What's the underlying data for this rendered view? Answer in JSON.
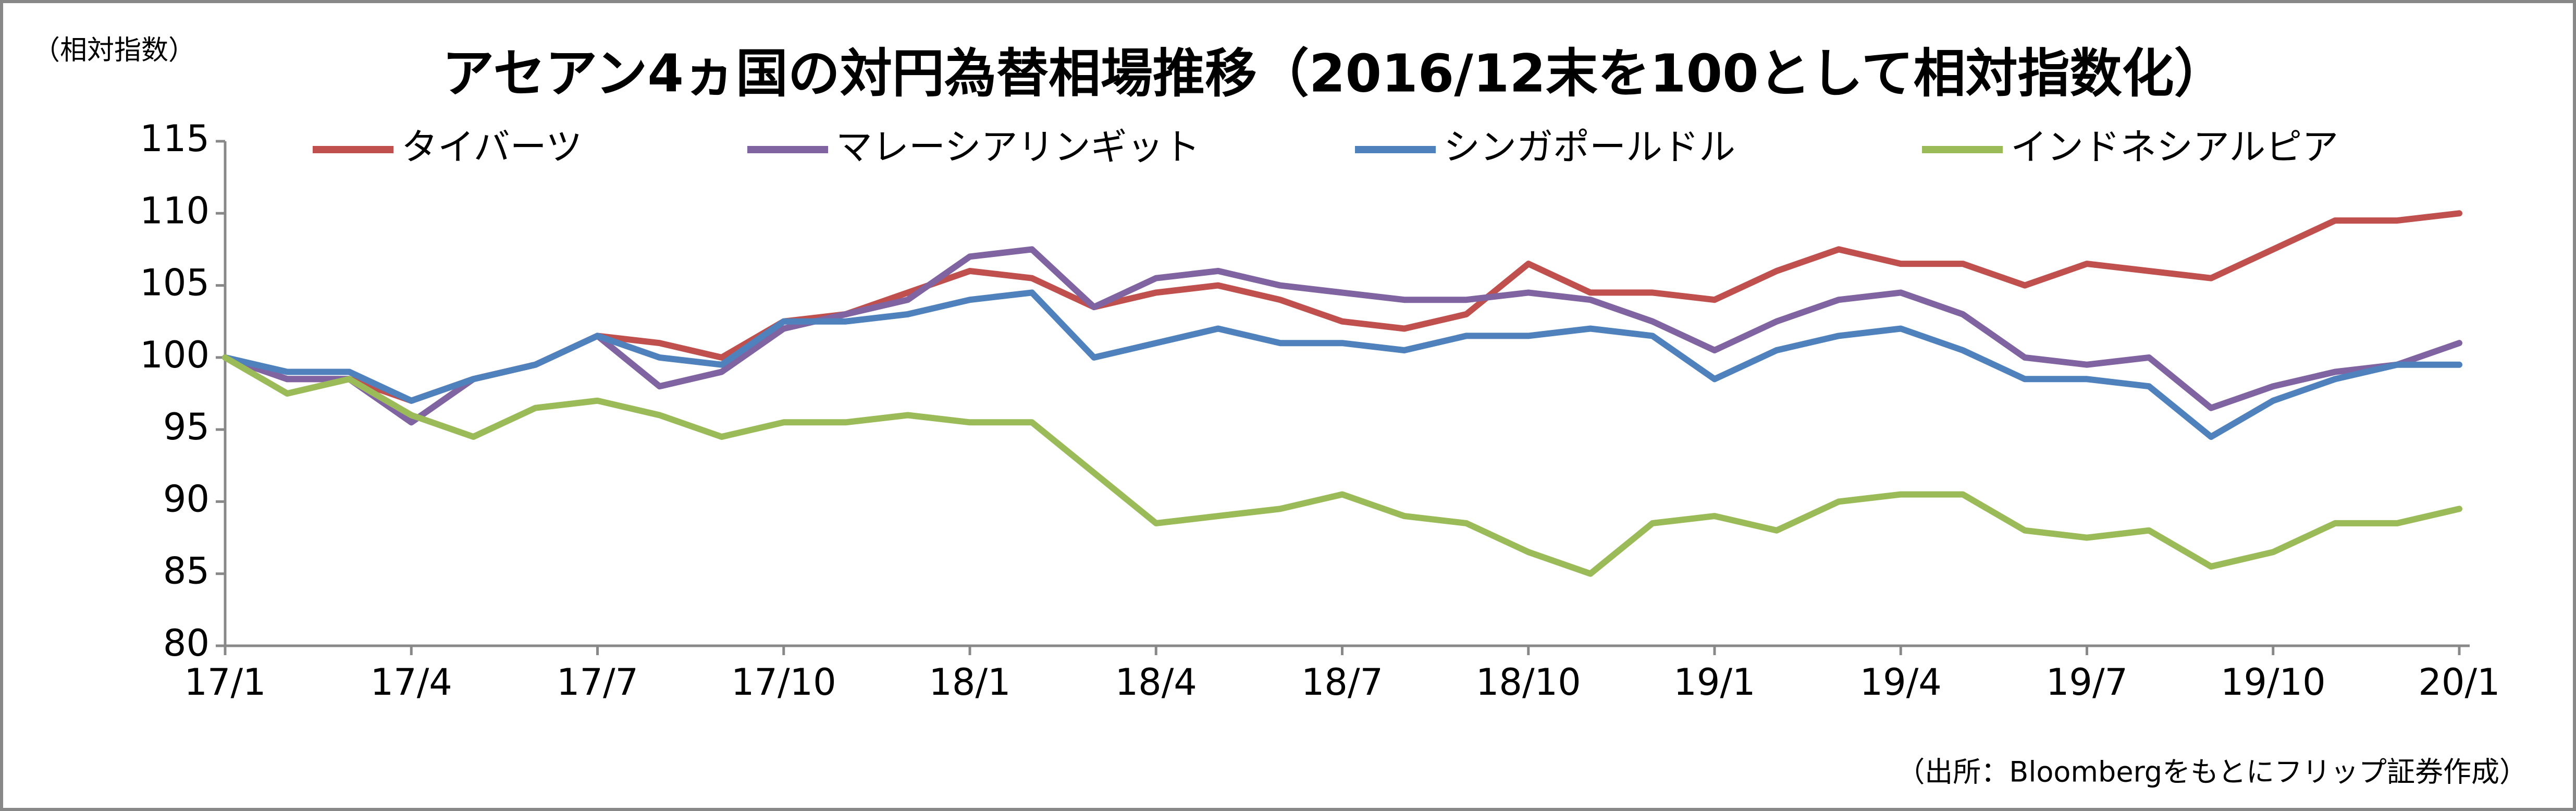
{
  "chart_data": {
    "type": "line",
    "title": "アセアン4ヵ国の対円為替相場推移（2016/12末を100として相対指数化）",
    "y_label": "（相対指数）",
    "source": "（出所：Bloombergをもとにフリップ証券作成）",
    "categories": [
      "17/1",
      null,
      null,
      "17/4",
      null,
      null,
      "17/7",
      null,
      null,
      "17/10",
      null,
      null,
      "18/1",
      null,
      null,
      "18/4",
      null,
      null,
      "18/7",
      null,
      null,
      "18/10",
      null,
      null,
      "19/1",
      null,
      null,
      "19/4",
      null,
      null,
      "19/7",
      null,
      null,
      "19/10",
      null,
      null,
      "20/1"
    ],
    "series": [
      {
        "name": "タイバーツ",
        "color": "#c0504d",
        "values": [
          100,
          98.5,
          98.5,
          97,
          98.5,
          99.5,
          101.5,
          101,
          100,
          102.5,
          103,
          104.5,
          106,
          105.5,
          103.5,
          104.5,
          105,
          104,
          102.5,
          102,
          103,
          106.5,
          104.5,
          104.5,
          104,
          106,
          107.5,
          106.5,
          106.5,
          105,
          106.5,
          106,
          105.5,
          107.5,
          109.5,
          109.5,
          110
        ]
      },
      {
        "name": "マレーシアリンギット",
        "color": "#8064a2",
        "values": [
          100,
          98.5,
          98.5,
          95.5,
          98.5,
          99.5,
          101.5,
          98,
          99,
          102,
          103,
          104,
          107,
          107.5,
          103.5,
          105.5,
          106,
          105,
          104.5,
          104,
          104,
          104.5,
          104,
          102.5,
          100.5,
          102.5,
          104,
          104.5,
          103,
          100,
          99.5,
          100,
          96.5,
          98,
          99,
          99.5,
          101
        ]
      },
      {
        "name": "シンガポールドル",
        "color": "#4f81bd",
        "values": [
          100,
          99,
          99,
          97,
          98.5,
          99.5,
          101.5,
          100,
          99.5,
          102.5,
          102.5,
          103,
          104,
          104.5,
          100,
          101,
          102,
          101,
          101,
          100.5,
          101.5,
          101.5,
          102,
          101.5,
          98.5,
          100.5,
          101.5,
          102,
          100.5,
          98.5,
          98.5,
          98,
          94.5,
          97,
          98.5,
          99.5,
          99.5
        ]
      },
      {
        "name": "インドネシアルピア",
        "color": "#9bbb59",
        "values": [
          100,
          97.5,
          98.5,
          96,
          94.5,
          96.5,
          97,
          96,
          94.5,
          95.5,
          95.5,
          96,
          95.5,
          95.5,
          92,
          88.5,
          89,
          89.5,
          90.5,
          89,
          88.5,
          86.5,
          85,
          88.5,
          89,
          88,
          90,
          90.5,
          90.5,
          88,
          87.5,
          88,
          85.5,
          86.5,
          88.5,
          88.5,
          89.5
        ]
      }
    ],
    "ylim": [
      80,
      115
    ],
    "yticks": [
      80,
      85,
      90,
      95,
      100,
      105,
      110,
      115
    ],
    "grid": false
  }
}
